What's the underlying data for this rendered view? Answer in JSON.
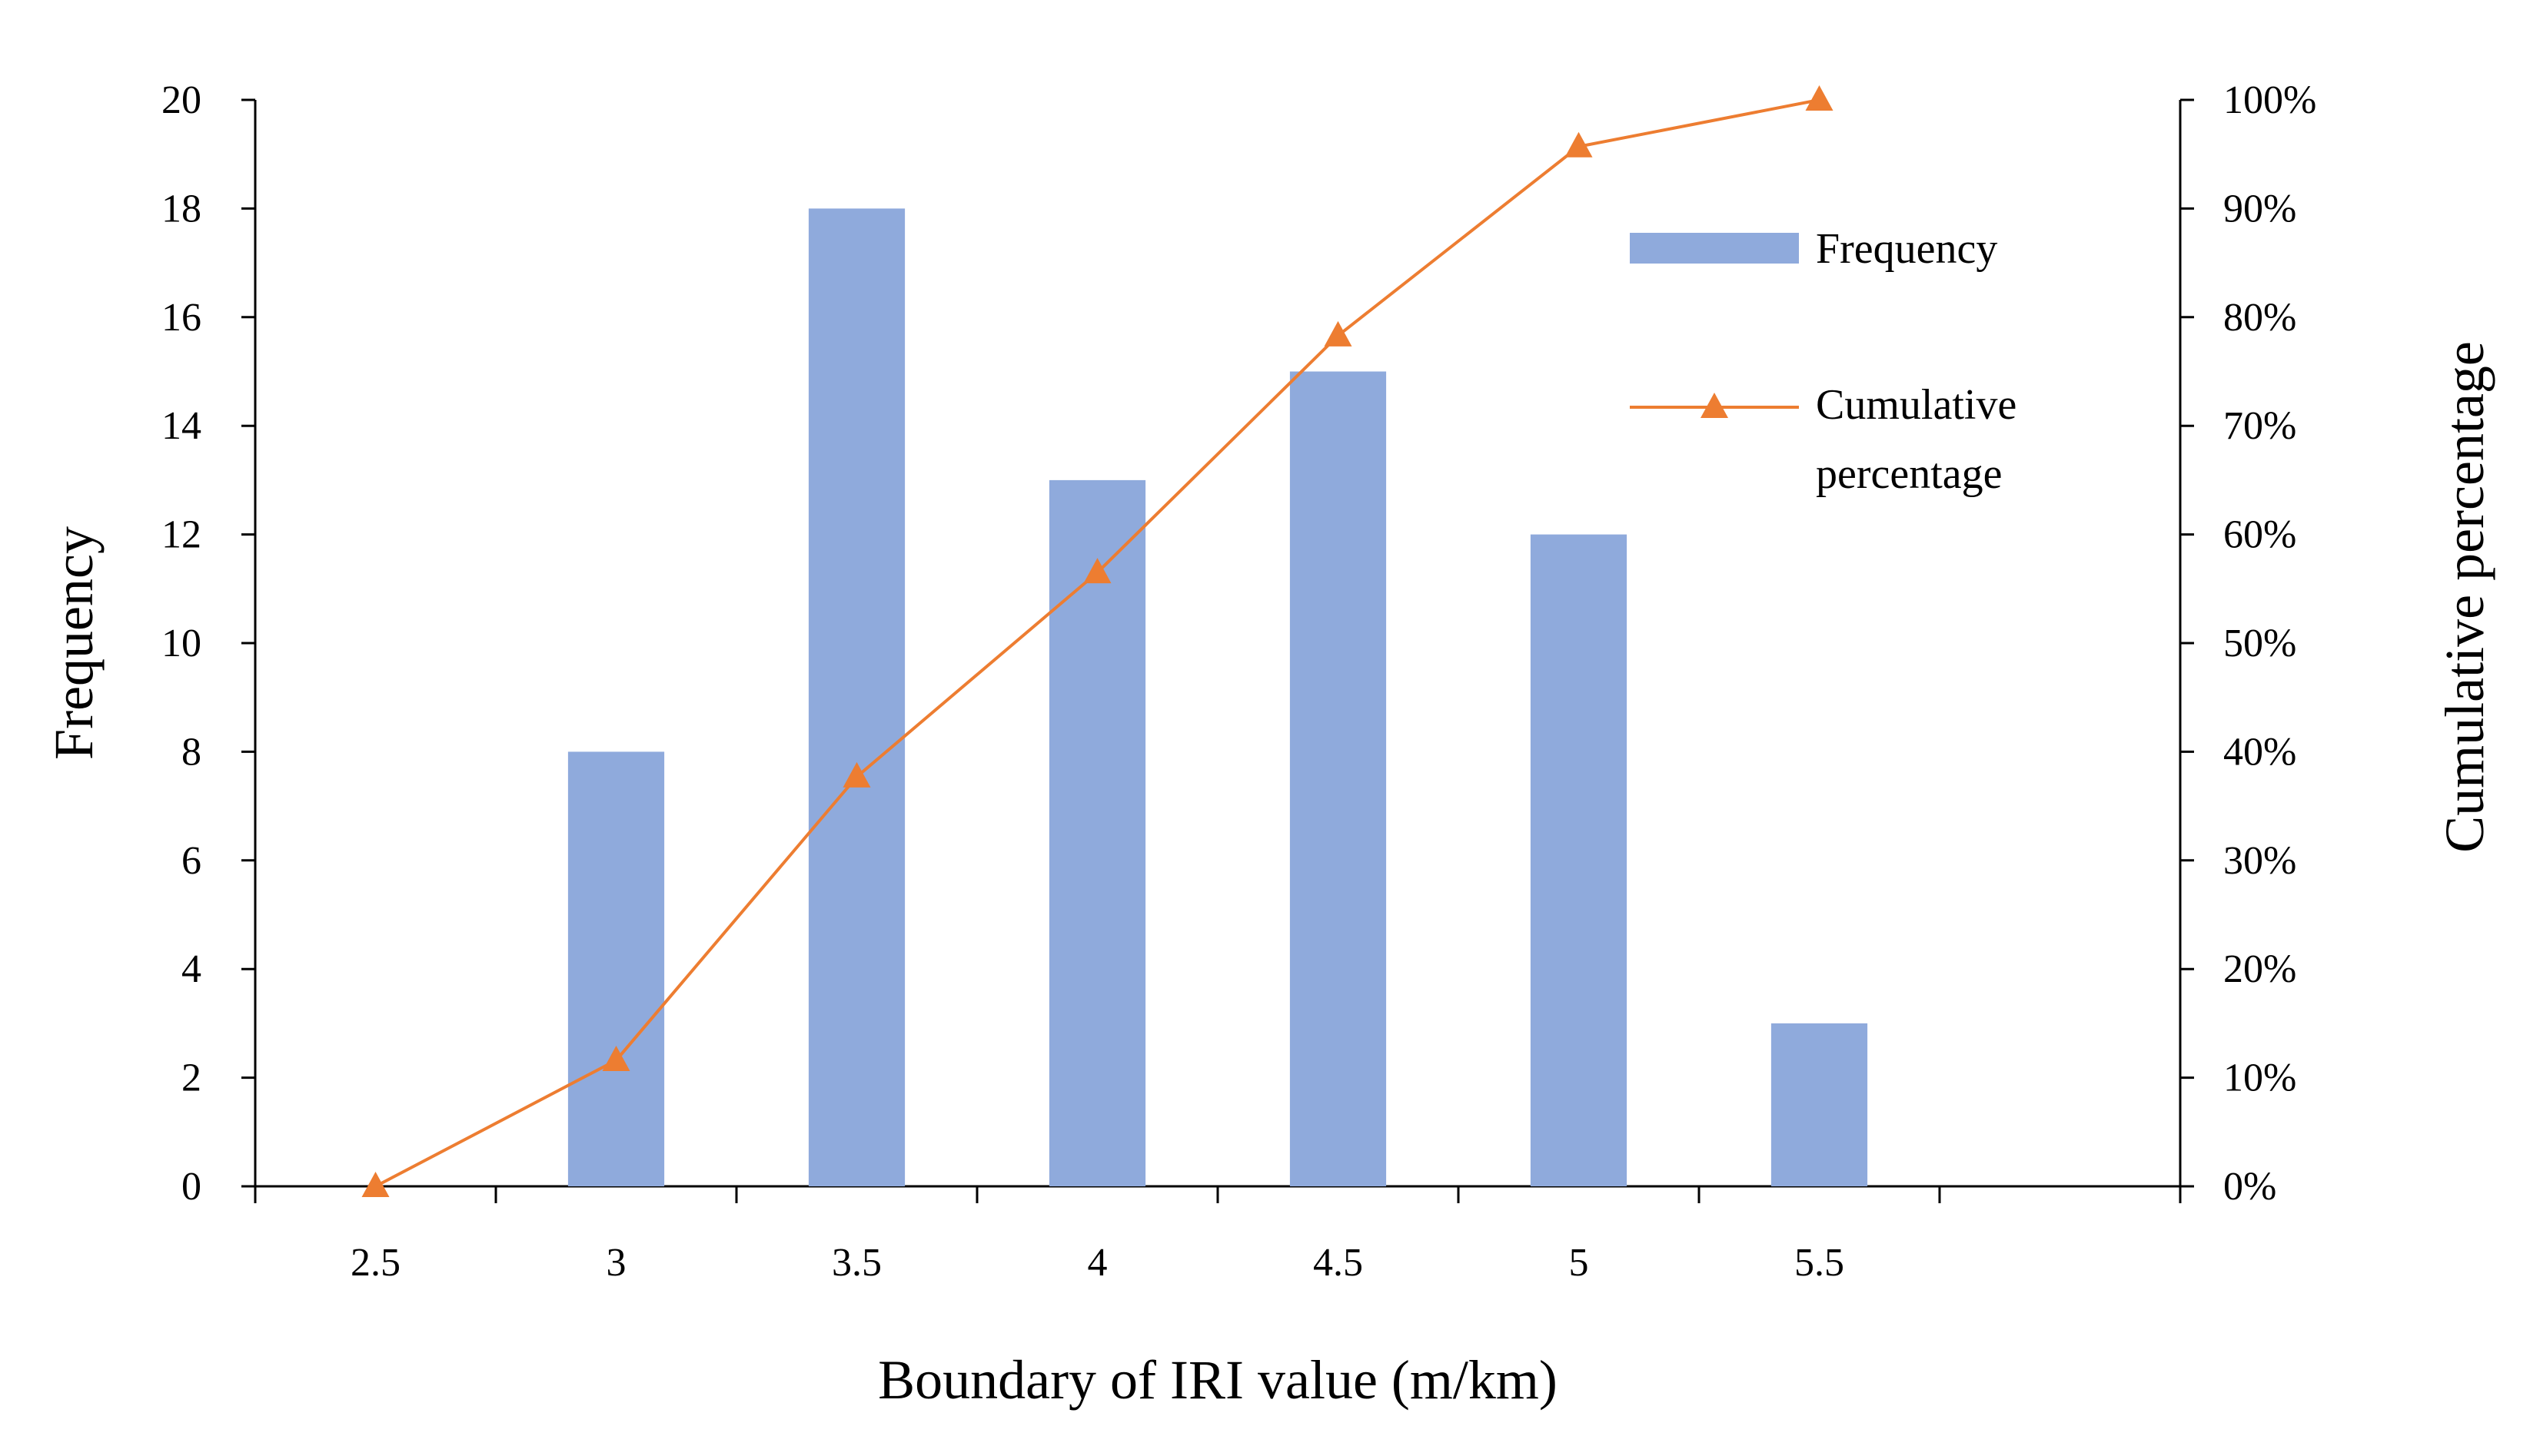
{
  "chart_data": {
    "type": "bar+line",
    "categories": [
      "2.5",
      "3",
      "3.5",
      "4",
      "4.5",
      "5",
      "5.5",
      ""
    ],
    "series": [
      {
        "name": "Frequency",
        "type": "bar",
        "axis": "left",
        "values": [
          0,
          8,
          18,
          13,
          15,
          12,
          3,
          null
        ],
        "color": "#8faadc"
      },
      {
        "name": "Cumulative percentage",
        "type": "line",
        "axis": "right",
        "marker": "triangle",
        "values": [
          0,
          11.6,
          37.7,
          56.5,
          78.3,
          95.7,
          100,
          null
        ],
        "color": "#ed7d31"
      }
    ],
    "xlabel": "Boundary of IRI value (m/km)",
    "ylabel": "Frequency",
    "y2label": "Cumulative percentage",
    "ylim": [
      0,
      20
    ],
    "y2lim": [
      0,
      100
    ],
    "y_ticks": [
      "0",
      "2",
      "4",
      "6",
      "8",
      "10",
      "12",
      "14",
      "16",
      "18",
      "20"
    ],
    "y2_ticks": [
      "0%",
      "10%",
      "20%",
      "30%",
      "40%",
      "50%",
      "60%",
      "70%",
      "80%",
      "90%",
      "100%"
    ],
    "legend": {
      "placement": "top-right inside",
      "entries": [
        {
          "label_lines": [
            "Frequency"
          ]
        },
        {
          "label_lines": [
            "Cumulative",
            "percentage"
          ]
        }
      ]
    },
    "grid": false
  }
}
